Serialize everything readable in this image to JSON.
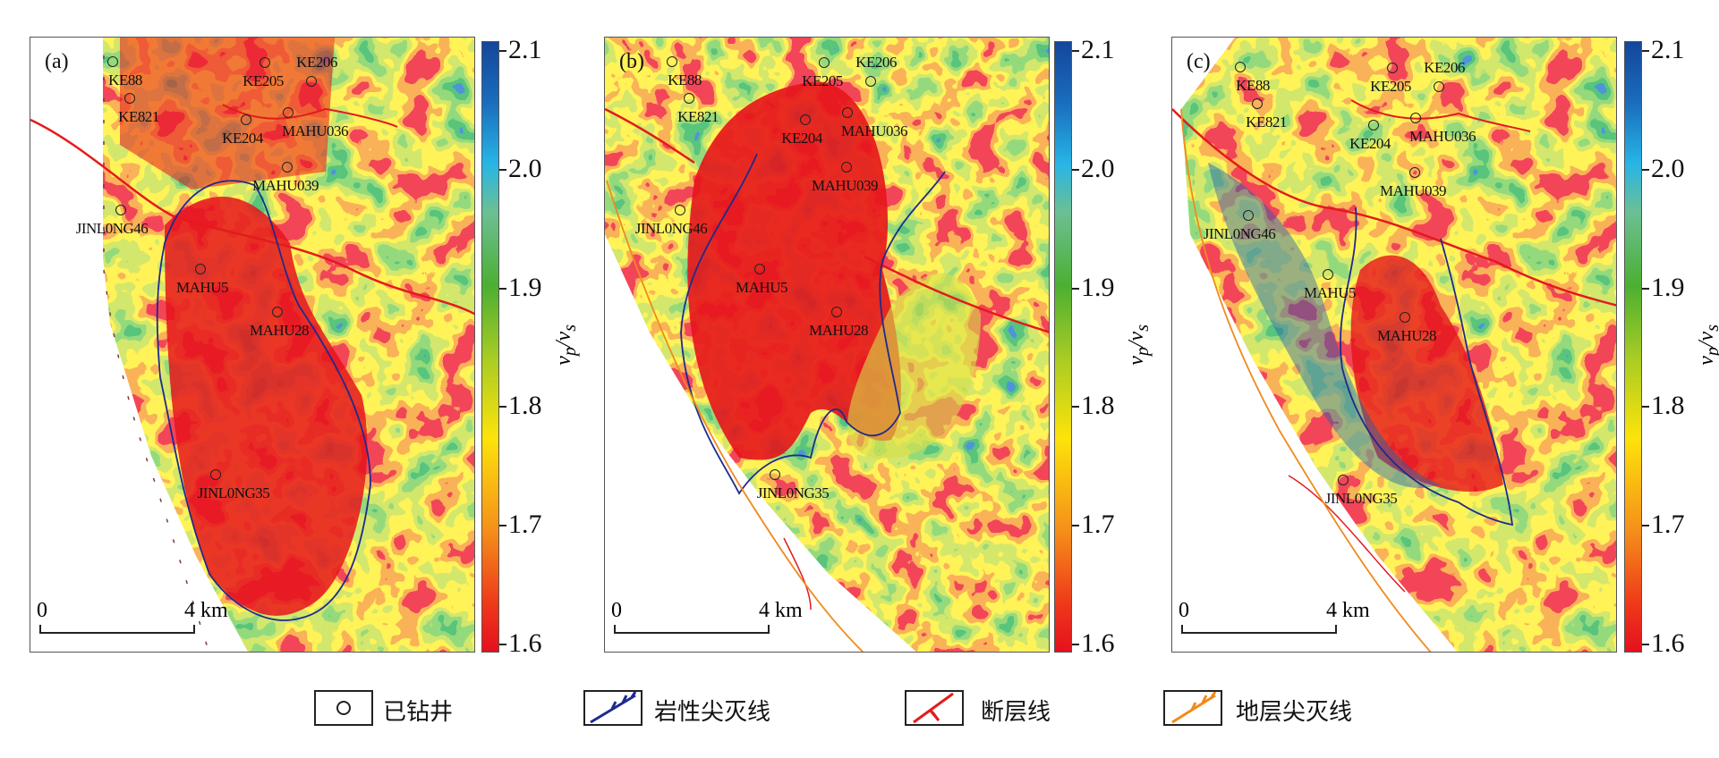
{
  "panels": [
    {
      "label": "(a)"
    },
    {
      "label": "(b)"
    },
    {
      "label": "(c)"
    }
  ],
  "wells": [
    "KE88",
    "KE821",
    "KE205",
    "KE206",
    "KE204",
    "MAHU036",
    "MAHU039",
    "JINL0NG46",
    "MAHU5",
    "MAHU28",
    "JINL0NG35"
  ],
  "scale_bar": {
    "start": "0",
    "end": "4 km"
  },
  "colorbar": {
    "ticks": [
      "2.1",
      "2.0",
      "1.9",
      "1.8",
      "1.7",
      "1.6"
    ],
    "range": [
      1.6,
      2.1
    ],
    "label_main": "v",
    "label_sub1": "p",
    "label_sub2": "s",
    "colors": [
      "#e5101e",
      "#f5901a",
      "#fde30a",
      "#4caf32",
      "#28b5e6",
      "#14469b"
    ]
  },
  "legend": [
    {
      "label": "已钻井",
      "color": "#222222"
    },
    {
      "label": "岩性尖灭线",
      "color": "#1f2a8c"
    },
    {
      "label": "断层线",
      "color": "#e41a1c"
    },
    {
      "label": "地层尖灭线",
      "color": "#f08a1c"
    }
  ]
}
